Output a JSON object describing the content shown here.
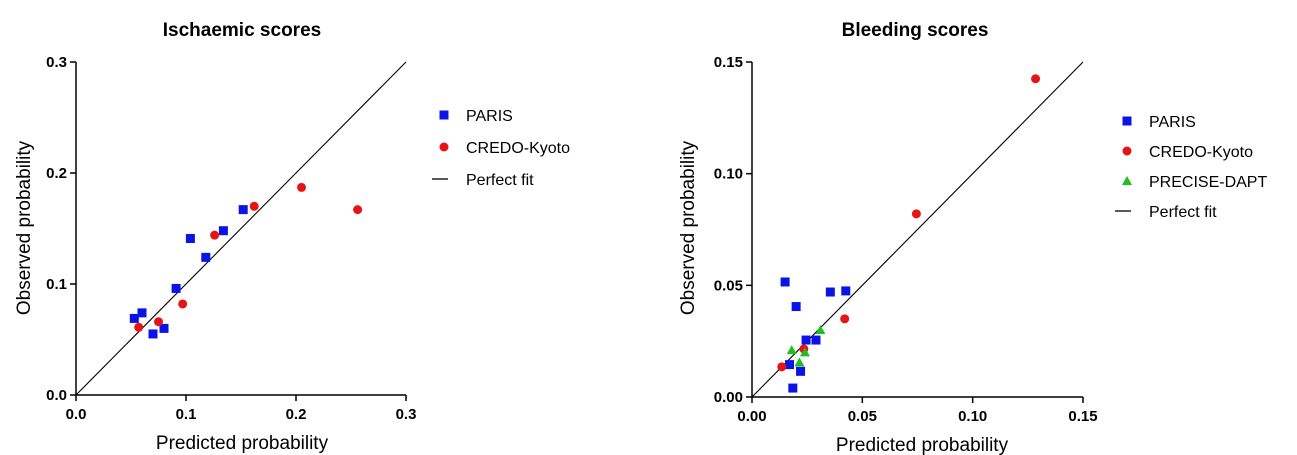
{
  "chart_data": [
    {
      "type": "scatter",
      "title": "Ischaemic scores",
      "xlabel": "Predicted probability",
      "ylabel": "Observed probability",
      "xlim": [
        0,
        0.3
      ],
      "ylim": [
        0,
        0.3
      ],
      "xticks": [
        "0.0",
        "0.1",
        "0.2",
        "0.3"
      ],
      "yticks": [
        "0.0",
        "0.1",
        "0.2",
        "0.3"
      ],
      "xtick_values": [
        0,
        0.1,
        0.2,
        0.3
      ],
      "ytick_values": [
        0,
        0.1,
        0.2,
        0.3
      ],
      "legend_position": "right",
      "series": [
        {
          "name": "PARIS",
          "marker": "square",
          "color": "#0a14e6",
          "points": [
            [
              0.053,
              0.069
            ],
            [
              0.06,
              0.074
            ],
            [
              0.07,
              0.055
            ],
            [
              0.08,
              0.06
            ],
            [
              0.091,
              0.096
            ],
            [
              0.104,
              0.141
            ],
            [
              0.118,
              0.124
            ],
            [
              0.134,
              0.148
            ],
            [
              0.152,
              0.167
            ]
          ]
        },
        {
          "name": "CREDO-Kyoto",
          "marker": "circle",
          "color": "#e61414",
          "points": [
            [
              0.057,
              0.061
            ],
            [
              0.075,
              0.066
            ],
            [
              0.097,
              0.082
            ],
            [
              0.126,
              0.144
            ],
            [
              0.162,
              0.17
            ],
            [
              0.205,
              0.187
            ],
            [
              0.256,
              0.167
            ]
          ]
        }
      ],
      "reference_line": {
        "name": "Perfect fit",
        "from": [
          0,
          0
        ],
        "to": [
          0.3,
          0.3
        ]
      }
    },
    {
      "type": "scatter",
      "title": "Bleeding scores",
      "xlabel": "Predicted probability",
      "ylabel": "Observed probability",
      "xlim": [
        0,
        0.15
      ],
      "ylim": [
        0,
        0.15
      ],
      "xticks": [
        "0.00",
        "0.05",
        "0.10",
        "0.15"
      ],
      "yticks": [
        "0.00",
        "0.05",
        "0.10",
        "0.15"
      ],
      "xtick_values": [
        0,
        0.05,
        0.1,
        0.15
      ],
      "ytick_values": [
        0,
        0.05,
        0.1,
        0.15
      ],
      "legend_position": "right",
      "series": [
        {
          "name": "PARIS",
          "marker": "square",
          "color": "#0a14e6",
          "points": [
            [
              0.015,
              0.0515
            ],
            [
              0.017,
              0.0145
            ],
            [
              0.0185,
              0.004
            ],
            [
              0.02,
              0.0405
            ],
            [
              0.022,
              0.0115
            ],
            [
              0.0245,
              0.0255
            ],
            [
              0.029,
              0.0255
            ],
            [
              0.0355,
              0.047
            ],
            [
              0.0425,
              0.0475
            ]
          ]
        },
        {
          "name": "CREDO-Kyoto",
          "marker": "circle",
          "color": "#e61414",
          "points": [
            [
              0.0135,
              0.0135
            ],
            [
              0.0235,
              0.0215
            ],
            [
              0.042,
              0.035
            ],
            [
              0.0745,
              0.082
            ],
            [
              0.1285,
              0.1425
            ]
          ]
        },
        {
          "name": "PRECISE-DAPT",
          "marker": "triangle",
          "color": "#1fbf1f",
          "points": [
            [
              0.018,
              0.021
            ],
            [
              0.0215,
              0.0155
            ],
            [
              0.024,
              0.02
            ],
            [
              0.031,
              0.03
            ]
          ]
        }
      ],
      "reference_line": {
        "name": "Perfect fit",
        "from": [
          0,
          0
        ],
        "to": [
          0.15,
          0.15
        ]
      }
    }
  ]
}
